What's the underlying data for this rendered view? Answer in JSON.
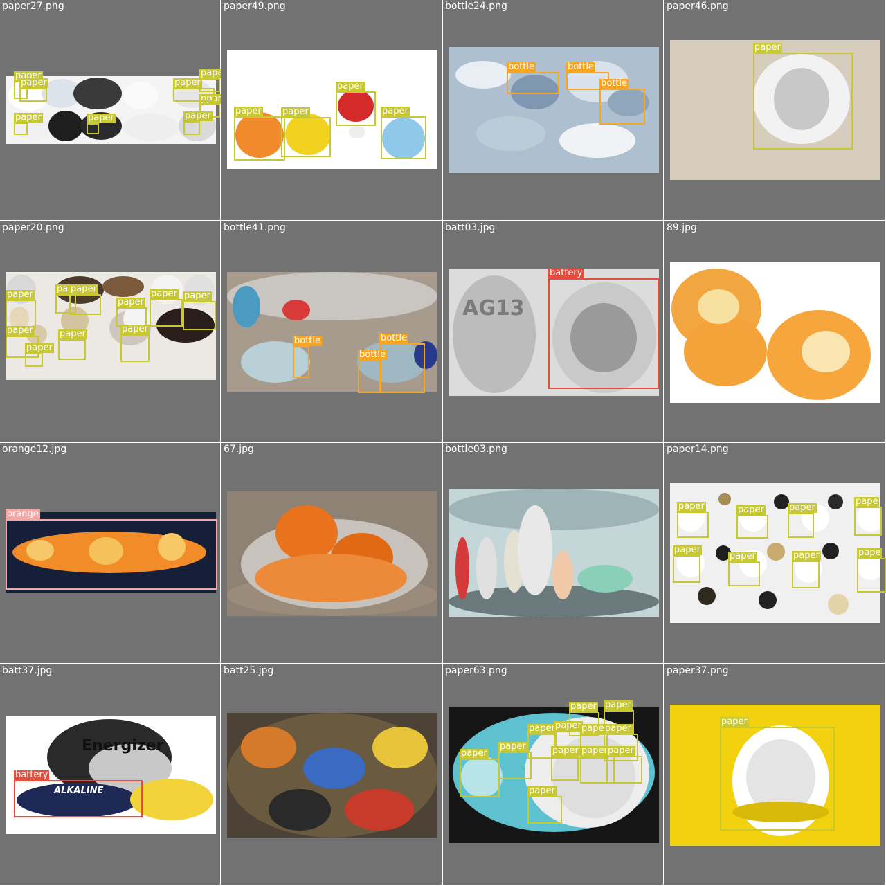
{
  "colors": {
    "background": "#727272",
    "paper": "#c8c832",
    "bottle": "#f5a623",
    "battery": "#e74c3c",
    "orange": "#f4a7a7",
    "label_text": "#ffffff"
  },
  "tiles": [
    {
      "filename": "paper27.png",
      "scene": "collage of crumpled paper images",
      "labels": [
        "paper",
        "paper",
        "paper",
        "paper",
        "pape",
        "ppar",
        "paper",
        "paper"
      ]
    },
    {
      "filename": "paper49.png",
      "scene": "colored crumpled paper balls",
      "labels": [
        "paper",
        "paper",
        "paper",
        "paper",
        "paper"
      ]
    },
    {
      "filename": "bottle24.png",
      "scene": "pile of plastic bottles",
      "labels": [
        "bottle",
        "bottle",
        "bottle"
      ]
    },
    {
      "filename": "paper46.png",
      "scene": "crumpled paper on newspaper",
      "labels": [
        "paper"
      ]
    },
    {
      "filename": "paper20.png",
      "scene": "collage of crumpled paper images",
      "labels": [
        "paper",
        "paper",
        "paper",
        "paper",
        "paper",
        "paper",
        "paper",
        "paper",
        "paper",
        "paper"
      ]
    },
    {
      "filename": "bottle41.png",
      "scene": "room floor with bottles",
      "labels": [
        "bottle",
        "bottle",
        "bottle"
      ]
    },
    {
      "filename": "batt03.jpg",
      "scene": "coin cell batteries",
      "labels": [
        "battery"
      ],
      "print_text": "AG13"
    },
    {
      "filename": "89.jpg",
      "scene": "orange peels",
      "labels": []
    },
    {
      "filename": "orange12.jpg",
      "scene": "spiral orange peel",
      "labels": [
        "orange"
      ]
    },
    {
      "filename": "67.jpg",
      "scene": "orange peels on glass plate",
      "labels": []
    },
    {
      "filename": "bottle03.png",
      "scene": "soda bottles",
      "labels": []
    },
    {
      "filename": "paper14.png",
      "scene": "paper balls and cubes",
      "labels": [
        "paper",
        "paper",
        "paper",
        "pape",
        "paper",
        "paper",
        "paper",
        "pape"
      ]
    },
    {
      "filename": "batt37.jpg",
      "scene": "batteries",
      "labels": [
        "battery"
      ],
      "print_text": "Energizer",
      "print_text_2": "ALKALINE"
    },
    {
      "filename": "batt25.jpg",
      "scene": "pile of batteries",
      "labels": []
    },
    {
      "filename": "paper63.png",
      "scene": "crumpled paper on blue",
      "labels": [
        "paper",
        "paper",
        "paper",
        "paper",
        "paper",
        "paper",
        "paper",
        "paper",
        "paper",
        "paper",
        "paper",
        "paper"
      ]
    },
    {
      "filename": "paper37.png",
      "scene": "crumpled paper on yellow",
      "labels": [
        "paper"
      ]
    }
  ]
}
